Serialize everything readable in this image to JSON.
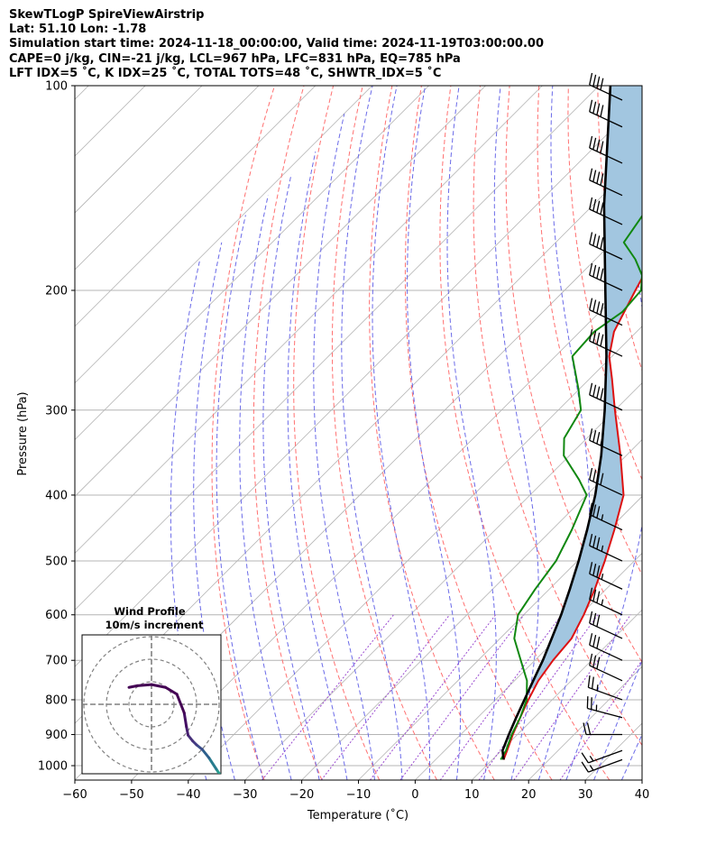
{
  "header": {
    "line1": "SkewTLogP SpireViewAirstrip",
    "line2": "Lat: 51.10   Lon: -1.78",
    "line3": "Simulation start time: 2024-11-18_00:00:00, Valid time: 2024-11-19T03:00:00.00",
    "line4": "CAPE=0 j/kg, CIN=-21 j/kg, LCL=967 hPa, LFC=831 hPa, EQ=785 hPa",
    "line5": "LFT IDX=5 ˚C, K IDX=25 ˚C, TOTAL TOTS=48 ˚C, SHWTR_IDX=5 ˚C"
  },
  "chart_data": {
    "type": "line",
    "xlabel": "Temperature (˚C)",
    "ylabel": "Pressure (hPa)",
    "xlim": [
      -60,
      40
    ],
    "ylim": [
      1050,
      100
    ],
    "y_scale": "log",
    "skew": true,
    "x_ticks": [
      "−60",
      "−50",
      "−40",
      "−30",
      "−20",
      "−10",
      "0",
      "10",
      "20",
      "30",
      "40"
    ],
    "y_ticks": [
      "100",
      "200",
      "300",
      "400",
      "500",
      "600",
      "700",
      "800",
      "900",
      "1000"
    ],
    "grid": true,
    "colors": {
      "temperature": "#dd1111",
      "dewpoint": "#118811",
      "parcel": "#000000",
      "cape_fill": "#a2c6e0",
      "dry_adiabat": "#ff7070",
      "moist_adiabat": "#6a6ae8",
      "mixing_ratio": "#9a4ad0",
      "isotherm": "#b4b4b4"
    },
    "series": [
      {
        "key": "temperature",
        "pressure": [
          980,
          950,
          900,
          850,
          800,
          750,
          700,
          650,
          600,
          550,
          500,
          450,
          400,
          350,
          300,
          270,
          250,
          230,
          200,
          180,
          170,
          150,
          140,
          130,
          120,
          110,
          100
        ],
        "values": [
          12.0,
          11.0,
          9.2,
          7.5,
          5.8,
          4.2,
          3.2,
          2.6,
          0.6,
          -2.0,
          -5.2,
          -9.0,
          -13.5,
          -21.0,
          -30.0,
          -36.0,
          -40.5,
          -44.0,
          -47.5,
          -50.0,
          -51.5,
          -54.0,
          -56.5,
          -59.0,
          -61.0,
          -63.0,
          -66.0
        ]
      },
      {
        "key": "dewpoint",
        "pressure": [
          980,
          950,
          900,
          850,
          800,
          750,
          700,
          650,
          600,
          550,
          500,
          450,
          400,
          380,
          350,
          330,
          300,
          280,
          250,
          230,
          215,
          200,
          190,
          180,
          170,
          150,
          130,
          110,
          100
        ],
        "values": [
          11.5,
          10.8,
          9.0,
          7.5,
          5.5,
          2.2,
          -2.5,
          -7.5,
          -11.0,
          -12.5,
          -13.8,
          -16.5,
          -20.0,
          -24.0,
          -31.0,
          -34.0,
          -36.0,
          -40.0,
          -47.0,
          -47.5,
          -46.0,
          -46.5,
          -49.0,
          -53.0,
          -58.0,
          -60.0,
          -64.0,
          -68.0,
          -71.0
        ]
      },
      {
        "key": "parcel",
        "pressure": [
          980,
          950,
          900,
          850,
          800,
          750,
          700,
          650,
          600,
          550,
          500,
          450,
          400,
          350,
          300,
          250,
          200,
          150,
          100
        ],
        "values": [
          12.0,
          10.2,
          8.5,
          6.8,
          5.1,
          3.3,
          1.4,
          -0.9,
          -3.4,
          -6.4,
          -9.8,
          -13.8,
          -18.5,
          -24.4,
          -31.8,
          -41.0,
          -52.8,
          -68.0,
          -88.0
        ]
      }
    ],
    "wind_barbs": [
      {
        "pressure": 980,
        "speed_kt": 15,
        "dir_deg": 250
      },
      {
        "pressure": 950,
        "speed_kt": 15,
        "dir_deg": 250
      },
      {
        "pressure": 900,
        "speed_kt": 20,
        "dir_deg": 270
      },
      {
        "pressure": 850,
        "speed_kt": 25,
        "dir_deg": 285
      },
      {
        "pressure": 800,
        "speed_kt": 25,
        "dir_deg": 290
      },
      {
        "pressure": 750,
        "speed_kt": 30,
        "dir_deg": 295
      },
      {
        "pressure": 700,
        "speed_kt": 30,
        "dir_deg": 295
      },
      {
        "pressure": 650,
        "speed_kt": 30,
        "dir_deg": 295
      },
      {
        "pressure": 600,
        "speed_kt": 35,
        "dir_deg": 295
      },
      {
        "pressure": 550,
        "speed_kt": 35,
        "dir_deg": 295
      },
      {
        "pressure": 500,
        "speed_kt": 35,
        "dir_deg": 295
      },
      {
        "pressure": 450,
        "speed_kt": 35,
        "dir_deg": 295
      },
      {
        "pressure": 400,
        "speed_kt": 40,
        "dir_deg": 295
      },
      {
        "pressure": 350,
        "speed_kt": 40,
        "dir_deg": 295
      },
      {
        "pressure": 300,
        "speed_kt": 40,
        "dir_deg": 295
      },
      {
        "pressure": 250,
        "speed_kt": 40,
        "dir_deg": 295
      },
      {
        "pressure": 225,
        "speed_kt": 40,
        "dir_deg": 295
      },
      {
        "pressure": 200,
        "speed_kt": 40,
        "dir_deg": 295
      },
      {
        "pressure": 180,
        "speed_kt": 40,
        "dir_deg": 295
      },
      {
        "pressure": 160,
        "speed_kt": 40,
        "dir_deg": 295
      },
      {
        "pressure": 145,
        "speed_kt": 40,
        "dir_deg": 295
      },
      {
        "pressure": 130,
        "speed_kt": 40,
        "dir_deg": 295
      },
      {
        "pressure": 115,
        "speed_kt": 40,
        "dir_deg": 295
      },
      {
        "pressure": 105,
        "speed_kt": 40,
        "dir_deg": 295
      }
    ],
    "hodograph": {
      "title_line1": "Wind Profile",
      "title_line2": "10m/s increment",
      "u": [
        12.5,
        11.5,
        10.2,
        9.0,
        8.0,
        7.3,
        6.5,
        6.2,
        5.8,
        4.5,
        2.5,
        0.0,
        -2.5,
        -4.0
      ],
      "v": [
        -13.0,
        -11.5,
        -9.5,
        -8.0,
        -7.2,
        -6.5,
        -5.5,
        -4.0,
        -1.5,
        1.8,
        3.0,
        3.5,
        3.3,
        3.0
      ],
      "colors": [
        "#2a9d8f",
        "#287c8e",
        "#2c5f8c",
        "#3b4d8a",
        "#433b83",
        "#46307a",
        "#472070",
        "#440f63",
        "#440154",
        "#440154",
        "#440154",
        "#440154",
        "#440154",
        "#440154"
      ]
    }
  }
}
